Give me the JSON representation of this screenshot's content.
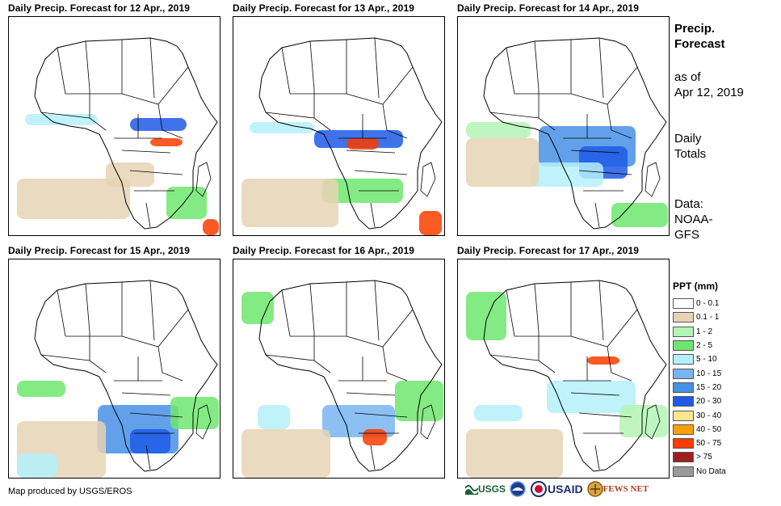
{
  "panels": [
    {
      "title": "Daily Precip. Forecast for 12 Apr., 2019"
    },
    {
      "title": "Daily Precip. Forecast for 13 Apr., 2019"
    },
    {
      "title": "Daily Precip. Forecast for 14 Apr., 2019"
    },
    {
      "title": "Daily Precip. Forecast for 15 Apr., 2019"
    },
    {
      "title": "Daily Precip. Forecast for 16 Apr., 2019"
    },
    {
      "title": "Daily Precip. Forecast for 17 Apr., 2019"
    }
  ],
  "side": {
    "heading_line1": "Precip.",
    "heading_line2": "Forecast",
    "asof_line1": "as of",
    "asof_line2": "Apr 12, 2019",
    "totals_line1": "Daily",
    "totals_line2": "Totals",
    "data_line1": "Data:",
    "data_line2": "NOAA-",
    "data_line3": "GFS"
  },
  "legend": {
    "title": "PPT (mm)",
    "items": [
      {
        "label": "0 - 0.1",
        "color": "#ffffff"
      },
      {
        "label": "0.1 - 1",
        "color": "#e6d3b4"
      },
      {
        "label": "1 - 2",
        "color": "#b4f5b4"
      },
      {
        "label": "2 - 5",
        "color": "#6ee66e"
      },
      {
        "label": "5 - 10",
        "color": "#b4f0fa"
      },
      {
        "label": "10 - 15",
        "color": "#78b4f0"
      },
      {
        "label": "15 - 20",
        "color": "#4690e6"
      },
      {
        "label": "20 - 30",
        "color": "#1e5ae6"
      },
      {
        "label": "30 - 40",
        "color": "#fae68c"
      },
      {
        "label": "40 - 50",
        "color": "#faa000"
      },
      {
        "label": "50 - 75",
        "color": "#fa3c00"
      },
      {
        "label": "> 75",
        "color": "#a01e1e"
      },
      {
        "label": "No Data",
        "color": "#999999"
      }
    ]
  },
  "footer": {
    "credit": "Map produced by USGS/EROS",
    "logos": [
      "USGS",
      "NOAA",
      "USAID",
      "FEWS NET"
    ]
  }
}
